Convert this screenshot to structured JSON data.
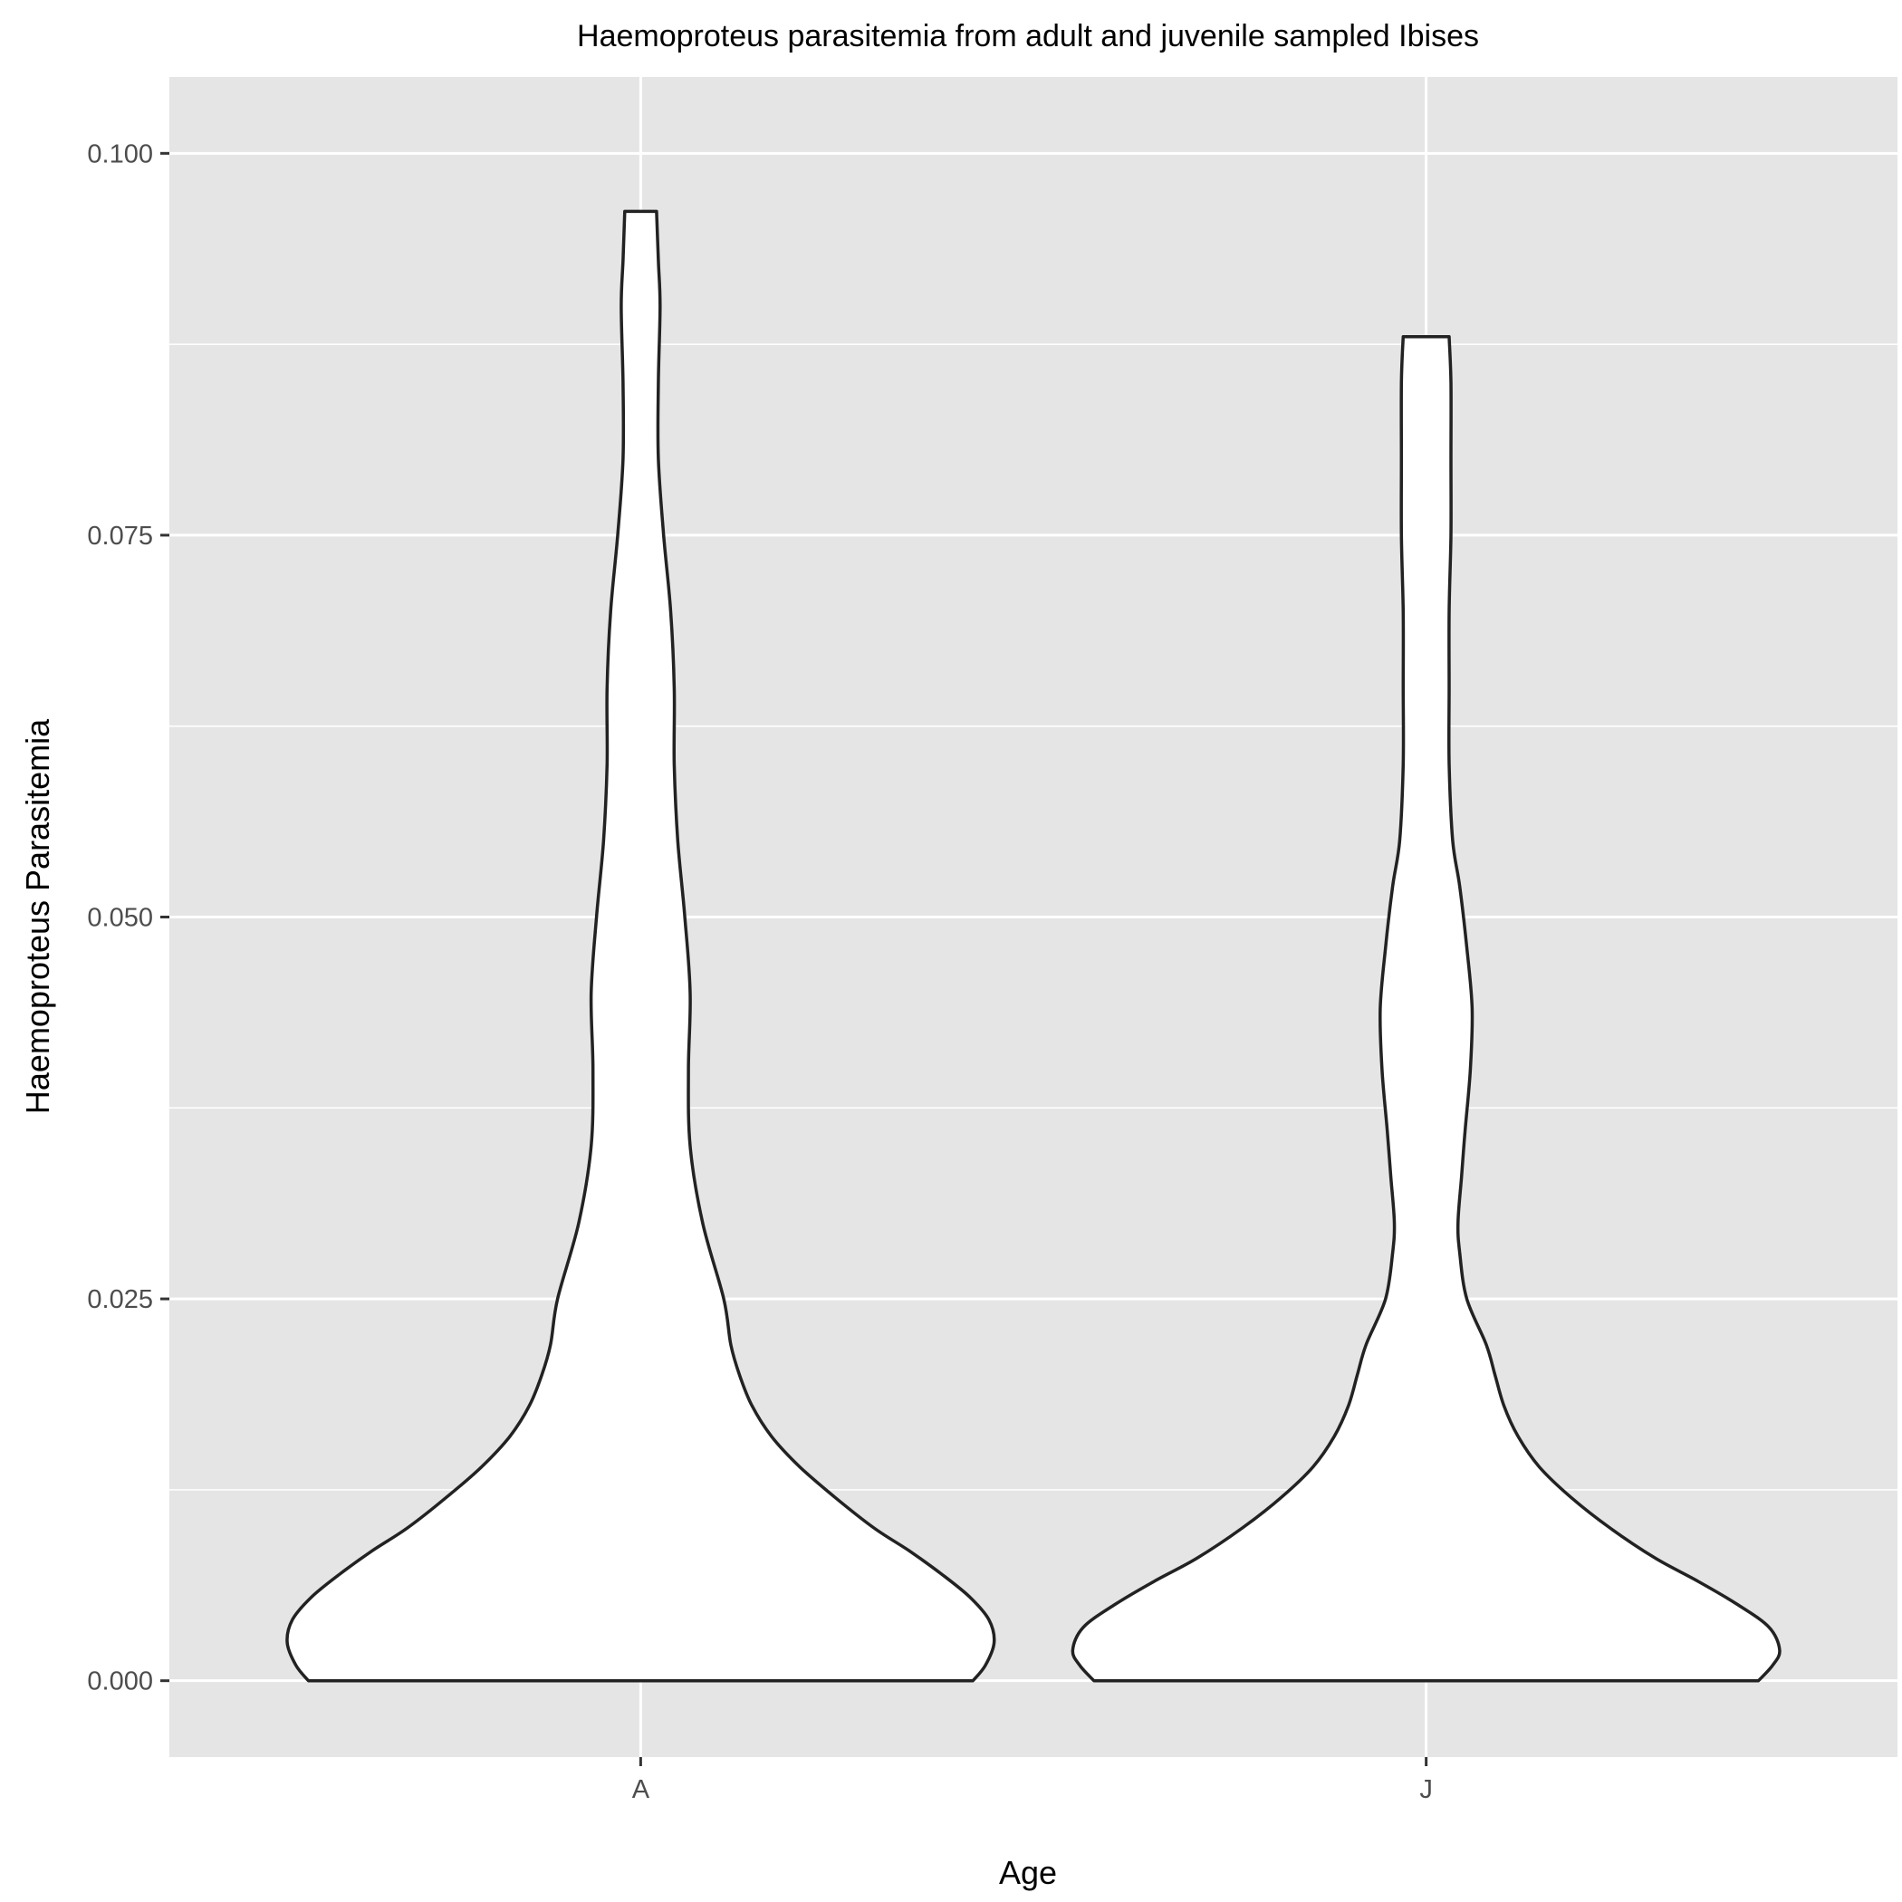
{
  "chart_data": {
    "type": "violin",
    "title": "Haemoproteus parasitemia from adult and juvenile sampled Ibises",
    "xlabel": "Age",
    "ylabel": "Haemoproteus Parasitemia",
    "categories": [
      "A",
      "J"
    ],
    "ylim": [
      -0.005,
      0.105
    ],
    "y_ticks": [
      0.0,
      0.025,
      0.05,
      0.075,
      0.1
    ],
    "y_tick_labels": [
      "0.000",
      "0.025",
      "0.050",
      "0.075",
      "0.100"
    ],
    "y_minor_ticks": [
      0.0125,
      0.0375,
      0.0625,
      0.0875
    ],
    "grid": true,
    "background": "#e5e5e5",
    "fill": "#ffffff",
    "outline": "#222222",
    "series": [
      {
        "category": "A",
        "max_width": 1.0,
        "profile": [
          [
            0.0,
            0.94
          ],
          [
            0.001,
            0.975
          ],
          [
            0.0025,
            1.0
          ],
          [
            0.004,
            0.985
          ],
          [
            0.0055,
            0.93
          ],
          [
            0.007,
            0.85
          ],
          [
            0.0085,
            0.76
          ],
          [
            0.01,
            0.66
          ],
          [
            0.012,
            0.55
          ],
          [
            0.014,
            0.45
          ],
          [
            0.016,
            0.37
          ],
          [
            0.018,
            0.315
          ],
          [
            0.02,
            0.28
          ],
          [
            0.022,
            0.255
          ],
          [
            0.025,
            0.235
          ],
          [
            0.03,
            0.175
          ],
          [
            0.035,
            0.14
          ],
          [
            0.04,
            0.135
          ],
          [
            0.045,
            0.14
          ],
          [
            0.05,
            0.125
          ],
          [
            0.055,
            0.105
          ],
          [
            0.06,
            0.095
          ],
          [
            0.065,
            0.095
          ],
          [
            0.07,
            0.085
          ],
          [
            0.075,
            0.065
          ],
          [
            0.08,
            0.05
          ],
          [
            0.085,
            0.05
          ],
          [
            0.09,
            0.055
          ],
          [
            0.093,
            0.05
          ],
          [
            0.0962,
            0.045
          ]
        ]
      },
      {
        "category": "J",
        "max_width": 1.0,
        "profile": [
          [
            0.0,
            0.94
          ],
          [
            0.001,
            0.98
          ],
          [
            0.002,
            1.0
          ],
          [
            0.0035,
            0.97
          ],
          [
            0.005,
            0.88
          ],
          [
            0.0065,
            0.77
          ],
          [
            0.008,
            0.65
          ],
          [
            0.01,
            0.52
          ],
          [
            0.012,
            0.41
          ],
          [
            0.014,
            0.32
          ],
          [
            0.016,
            0.26
          ],
          [
            0.018,
            0.22
          ],
          [
            0.02,
            0.195
          ],
          [
            0.022,
            0.17
          ],
          [
            0.025,
            0.115
          ],
          [
            0.028,
            0.095
          ],
          [
            0.03,
            0.09
          ],
          [
            0.033,
            0.1
          ],
          [
            0.036,
            0.11
          ],
          [
            0.04,
            0.125
          ],
          [
            0.044,
            0.13
          ],
          [
            0.048,
            0.115
          ],
          [
            0.052,
            0.095
          ],
          [
            0.055,
            0.075
          ],
          [
            0.06,
            0.065
          ],
          [
            0.065,
            0.065
          ],
          [
            0.07,
            0.065
          ],
          [
            0.075,
            0.07
          ],
          [
            0.08,
            0.07
          ],
          [
            0.085,
            0.07
          ],
          [
            0.088,
            0.065
          ]
        ]
      }
    ]
  }
}
